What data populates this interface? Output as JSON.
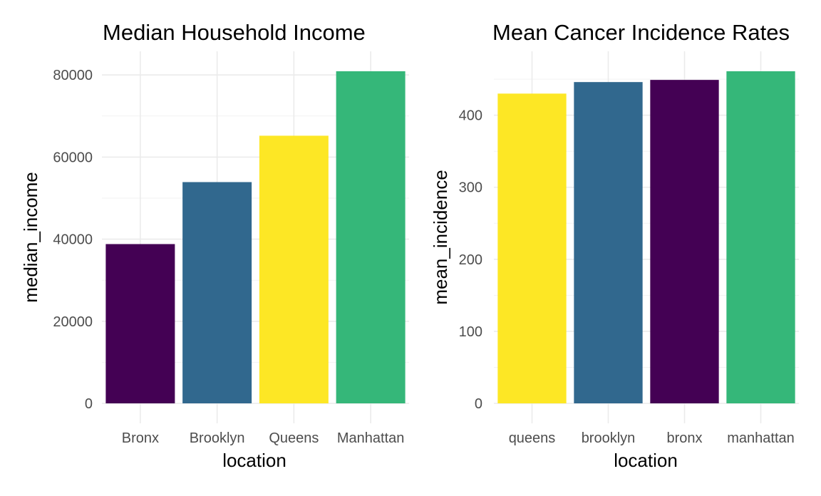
{
  "chart_data": [
    {
      "type": "bar",
      "title": "Median Household Income",
      "xlabel": "location",
      "ylabel": "median_income",
      "categories": [
        "Bronx",
        "Brooklyn",
        "Queens",
        "Manhattan"
      ],
      "values": [
        38800,
        53900,
        65200,
        80900
      ],
      "colors": [
        "#440154",
        "#31688e",
        "#fde725",
        "#35b779"
      ],
      "ylim": [
        0,
        80900
      ],
      "yticks": [
        0,
        20000,
        40000,
        60000,
        80000
      ],
      "ytick_labels": [
        "0",
        "20000",
        "40000",
        "60000",
        "80000"
      ],
      "grid": true,
      "legend": "none"
    },
    {
      "type": "bar",
      "title": "Mean Cancer Incidence Rates",
      "xlabel": "location",
      "ylabel": "mean_incidence",
      "categories": [
        "queens",
        "brooklyn",
        "bronx",
        "manhattan"
      ],
      "values": [
        430,
        446,
        449,
        461
      ],
      "colors": [
        "#fde725",
        "#31688e",
        "#440154",
        "#35b779"
      ],
      "ylim": [
        0,
        461
      ],
      "yticks": [
        0,
        100,
        200,
        300,
        400
      ],
      "ytick_labels": [
        "0",
        "100",
        "200",
        "300",
        "400"
      ],
      "grid": true,
      "legend": "none"
    }
  ]
}
